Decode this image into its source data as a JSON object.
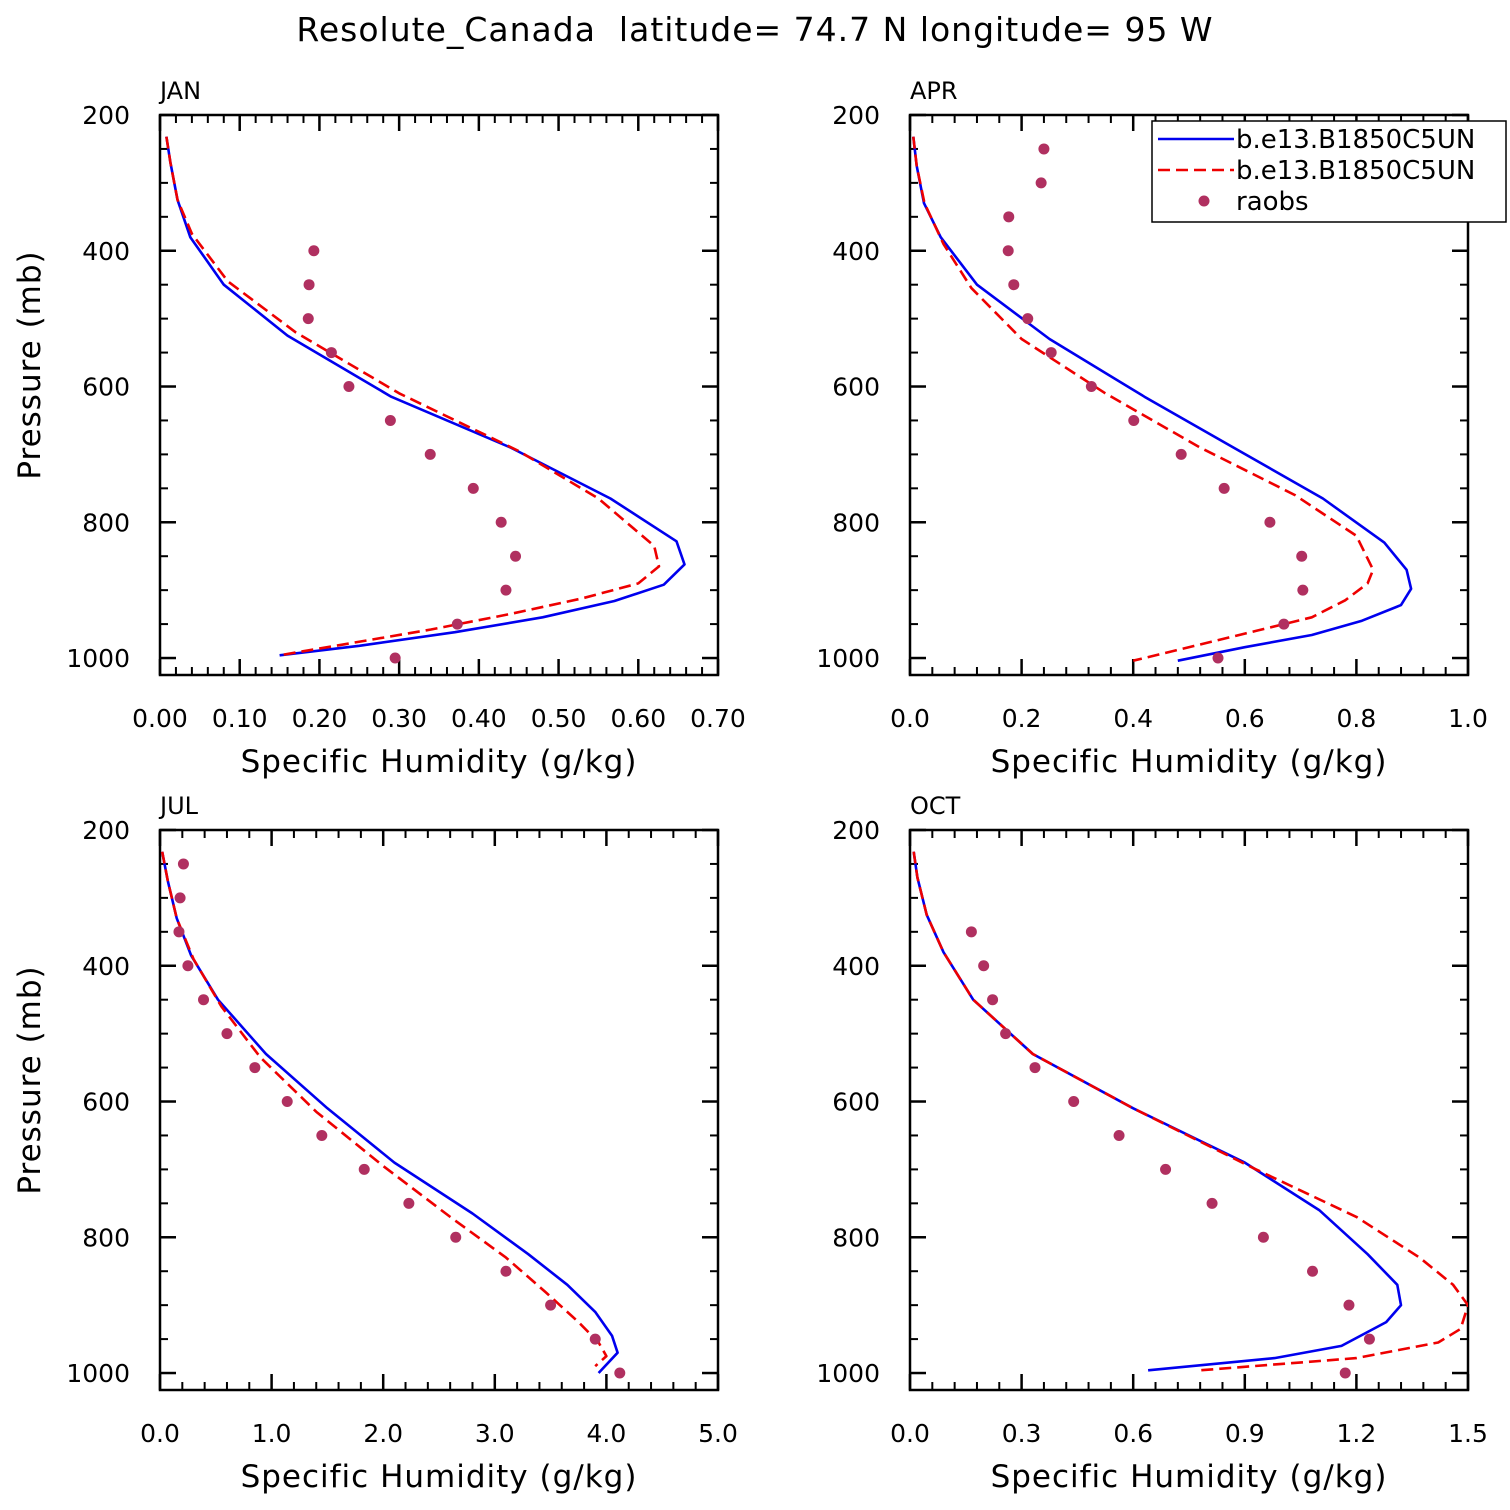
{
  "title": "Resolute_Canada  latitude= 74.7 N longitude= 95 W",
  "colors": {
    "model1": "#0000ee",
    "model2": "#ee0000",
    "raobs": "#b03060",
    "axis": "#000000"
  },
  "legend": {
    "entries": [
      {
        "label": "b.e13.B1850C5UN",
        "style": "solid",
        "color": "#0000ee"
      },
      {
        "label": "b.e13.B1850C5UN",
        "style": "dashed",
        "color": "#ee0000"
      },
      {
        "label": "raobs",
        "style": "dot",
        "color": "#b03060"
      }
    ]
  },
  "chart_data": [
    {
      "type": "line",
      "title": "JAN",
      "xlabel": "Specific Humidity (g/kg)",
      "ylabel": "Pressure (mb)",
      "xlim": [
        0,
        0.7
      ],
      "ylim": [
        200,
        1025
      ],
      "xticks": [
        0,
        0.1,
        0.2,
        0.3,
        0.4,
        0.5,
        0.6,
        0.7
      ],
      "xticklabels": [
        "0.00",
        "0.10",
        "0.20",
        "0.30",
        "0.40",
        "0.50",
        "0.60",
        "0.70"
      ],
      "yticks": [
        200,
        400,
        600,
        800,
        1000
      ],
      "yticklabels": [
        "200",
        "400",
        "600",
        "800",
        "1000"
      ],
      "series": [
        {
          "name": "b.e13.B1850C5UN",
          "style": "solid",
          "x": [
            0.008,
            0.013,
            0.022,
            0.038,
            0.08,
            0.16,
            0.29,
            0.44,
            0.565,
            0.648,
            0.658,
            0.632,
            0.57,
            0.48,
            0.37,
            0.25,
            0.15
          ],
          "y": [
            232,
            270,
            325,
            380,
            450,
            525,
            615,
            690,
            765,
            828,
            862,
            892,
            916,
            940,
            962,
            982,
            996
          ]
        },
        {
          "name": "b.e13.B1850C5UN",
          "style": "dashed",
          "x": [
            0.008,
            0.013,
            0.022,
            0.04,
            0.085,
            0.17,
            0.3,
            0.45,
            0.55,
            0.62,
            0.626,
            0.6,
            0.53,
            0.44,
            0.34,
            0.24,
            0.15
          ],
          "y": [
            232,
            270,
            325,
            375,
            445,
            520,
            610,
            695,
            765,
            835,
            865,
            890,
            912,
            935,
            958,
            978,
            996
          ]
        },
        {
          "name": "raobs",
          "style": "dot",
          "x": [
            0.193,
            0.187,
            0.186,
            0.215,
            0.237,
            0.289,
            0.339,
            0.393,
            0.428,
            0.446,
            0.434,
            0.373,
            0.295
          ],
          "y": [
            400,
            450,
            500,
            550,
            600,
            650,
            700,
            750,
            800,
            850,
            900,
            950,
            1000
          ]
        }
      ]
    },
    {
      "type": "line",
      "title": "APR",
      "xlabel": "Specific Humidity (g/kg)",
      "ylabel": "",
      "xlim": [
        0,
        1.0
      ],
      "ylim": [
        200,
        1025
      ],
      "xticks": [
        0,
        0.2,
        0.4,
        0.6,
        0.8,
        1.0
      ],
      "xticklabels": [
        "0.0",
        "0.2",
        "0.4",
        "0.6",
        "0.8",
        "1.0"
      ],
      "yticks": [
        200,
        400,
        600,
        800,
        1000
      ],
      "yticklabels": [
        "200",
        "400",
        "600",
        "800",
        "1000"
      ],
      "series": [
        {
          "name": "b.e13.B1850C5UN",
          "style": "solid",
          "x": [
            0.006,
            0.012,
            0.025,
            0.055,
            0.12,
            0.25,
            0.42,
            0.58,
            0.74,
            0.85,
            0.89,
            0.898,
            0.88,
            0.81,
            0.72,
            0.6,
            0.48
          ],
          "y": [
            232,
            275,
            330,
            380,
            450,
            530,
            615,
            690,
            765,
            830,
            870,
            898,
            922,
            945,
            966,
            984,
            1004
          ]
        },
        {
          "name": "b.e13.B1850C5UN",
          "style": "dashed",
          "x": [
            0.006,
            0.012,
            0.026,
            0.06,
            0.11,
            0.2,
            0.35,
            0.52,
            0.69,
            0.8,
            0.83,
            0.82,
            0.78,
            0.72,
            0.62,
            0.52,
            0.4
          ],
          "y": [
            232,
            275,
            330,
            390,
            455,
            530,
            610,
            690,
            760,
            820,
            870,
            890,
            915,
            940,
            960,
            980,
            1004
          ]
        },
        {
          "name": "raobs",
          "style": "dot",
          "x": [
            0.24,
            0.235,
            0.177,
            0.176,
            0.186,
            0.211,
            0.253,
            0.325,
            0.401,
            0.486,
            0.563,
            0.645,
            0.702,
            0.704,
            0.67,
            0.552
          ],
          "y": [
            250,
            300,
            350,
            400,
            450,
            500,
            550,
            600,
            650,
            700,
            750,
            800,
            850,
            900,
            950,
            1000
          ]
        }
      ]
    },
    {
      "type": "line",
      "title": "JUL",
      "xlabel": "Specific Humidity (g/kg)",
      "ylabel": "Pressure (mb)",
      "xlim": [
        0,
        5.0
      ],
      "ylim": [
        200,
        1025
      ],
      "xticks": [
        0,
        1,
        2,
        3,
        4,
        5
      ],
      "xticklabels": [
        "0.0",
        "1.0",
        "2.0",
        "3.0",
        "4.0",
        "5.0"
      ],
      "yticks": [
        200,
        400,
        600,
        800,
        1000
      ],
      "yticklabels": [
        "200",
        "400",
        "600",
        "800",
        "1000"
      ],
      "series": [
        {
          "name": "b.e13.B1850C5UN",
          "style": "solid",
          "x": [
            0.02,
            0.07,
            0.15,
            0.28,
            0.52,
            0.95,
            1.5,
            2.1,
            2.8,
            3.3,
            3.65,
            3.9,
            4.05,
            4.1,
            3.93
          ],
          "y": [
            232,
            275,
            330,
            385,
            450,
            530,
            610,
            690,
            765,
            825,
            870,
            910,
            945,
            970,
            1000
          ]
        },
        {
          "name": "b.e13.B1850C5UN",
          "style": "dashed",
          "x": [
            0.02,
            0.07,
            0.15,
            0.3,
            0.55,
            0.9,
            1.4,
            2.0,
            2.6,
            3.1,
            3.45,
            3.75,
            3.93,
            4.0,
            3.9
          ],
          "y": [
            232,
            275,
            330,
            390,
            460,
            535,
            615,
            695,
            770,
            830,
            880,
            925,
            955,
            975,
            990
          ]
        },
        {
          "name": "raobs",
          "style": "dot",
          "x": [
            0.21,
            0.18,
            0.17,
            0.25,
            0.39,
            0.6,
            0.85,
            1.14,
            1.45,
            1.83,
            2.23,
            2.65,
            3.1,
            3.5,
            3.9,
            4.12
          ],
          "y": [
            250,
            300,
            350,
            400,
            450,
            500,
            550,
            600,
            650,
            700,
            750,
            800,
            850,
            900,
            950,
            1000
          ]
        }
      ]
    },
    {
      "type": "line",
      "title": "OCT",
      "xlabel": "Specific Humidity (g/kg)",
      "ylabel": "",
      "xlim": [
        0,
        1.5
      ],
      "ylim": [
        200,
        1025
      ],
      "xticks": [
        0,
        0.3,
        0.6,
        0.9,
        1.2,
        1.5
      ],
      "xticklabels": [
        "0.0",
        "0.3",
        "0.6",
        "0.9",
        "1.2",
        "1.5"
      ],
      "yticks": [
        200,
        400,
        600,
        800,
        1000
      ],
      "yticklabels": [
        "200",
        "400",
        "600",
        "800",
        "1000"
      ],
      "series": [
        {
          "name": "b.e13.B1850C5UN",
          "style": "solid",
          "x": [
            0.01,
            0.02,
            0.045,
            0.09,
            0.17,
            0.33,
            0.6,
            0.9,
            1.1,
            1.23,
            1.31,
            1.32,
            1.28,
            1.16,
            0.98,
            0.64
          ],
          "y": [
            232,
            270,
            325,
            380,
            450,
            530,
            610,
            690,
            760,
            825,
            870,
            900,
            925,
            960,
            978,
            996
          ]
        },
        {
          "name": "b.e13.B1850C5UN",
          "style": "dashed",
          "x": [
            0.01,
            0.02,
            0.045,
            0.09,
            0.17,
            0.33,
            0.6,
            0.93,
            1.2,
            1.37,
            1.46,
            1.5,
            1.48,
            1.42,
            1.2,
            0.78
          ],
          "y": [
            232,
            270,
            325,
            380,
            450,
            530,
            610,
            700,
            770,
            830,
            870,
            900,
            935,
            955,
            978,
            996
          ]
        },
        {
          "name": "raobs",
          "style": "dot",
          "x": [
            0.165,
            0.198,
            0.222,
            0.257,
            0.336,
            0.44,
            0.562,
            0.687,
            0.812,
            0.95,
            1.082,
            1.18,
            1.235,
            1.17
          ],
          "y": [
            350,
            400,
            450,
            500,
            550,
            600,
            650,
            700,
            750,
            800,
            850,
            900,
            950,
            1000
          ]
        }
      ]
    }
  ]
}
